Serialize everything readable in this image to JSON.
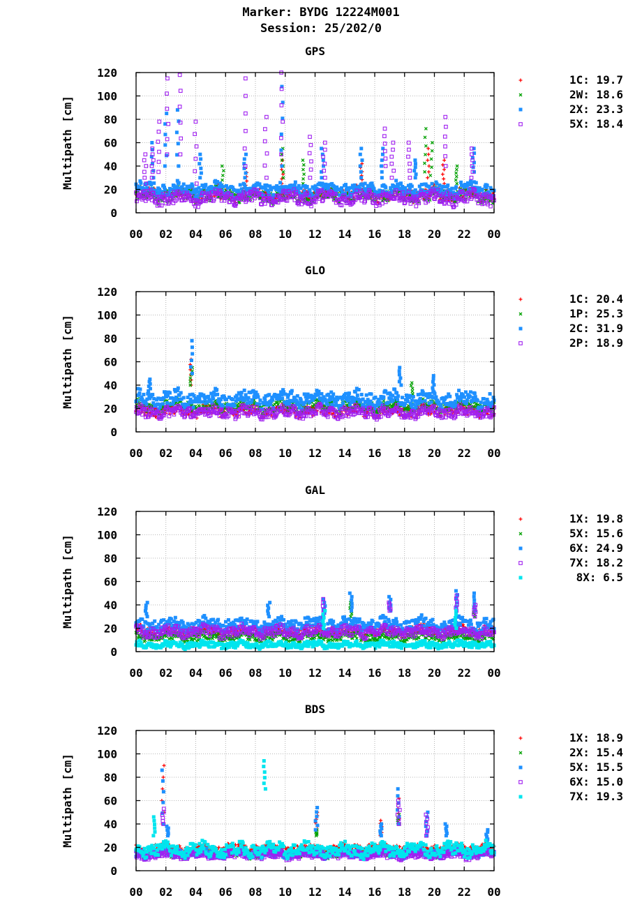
{
  "header": {
    "marker_line": "Marker: BYDG 12224M001",
    "session_line": "Session: 25/202/0"
  },
  "colors": {
    "red": "#ff0000",
    "green": "#00a000",
    "blue": "#1e90ff",
    "purple": "#a020f0",
    "cyan": "#00e5ee"
  },
  "chart_data": [
    {
      "type": "scatter",
      "title": "GPS",
      "ylabel": "Multipath [cm]",
      "xlabel": "",
      "xlim": [
        0,
        24
      ],
      "ylim": [
        0,
        120
      ],
      "xtick_labels": [
        "00",
        "02",
        "04",
        "06",
        "08",
        "10",
        "12",
        "14",
        "16",
        "18",
        "20",
        "22",
        "00"
      ],
      "ytick_labels": [
        "0",
        "20",
        "40",
        "60",
        "80",
        "100",
        "120"
      ],
      "grid": true,
      "legend_position": "right",
      "series": [
        {
          "name": "1C",
          "value": "19.7",
          "color": "#ff0000",
          "marker": "plus",
          "base": 16,
          "spread": 6,
          "spikes": [
            [
              7.4,
              20,
              38
            ],
            [
              9.8,
              25,
              45
            ],
            [
              15.1,
              25,
              42
            ],
            [
              19.6,
              30,
              55
            ],
            [
              20.6,
              25,
              45
            ]
          ]
        },
        {
          "name": "2W",
          "value": "18.6",
          "color": "#00a000",
          "marker": "cross",
          "base": 15,
          "spread": 6,
          "spikes": [
            [
              5.8,
              20,
              40
            ],
            [
              9.8,
              30,
              55
            ],
            [
              11.2,
              25,
              45
            ],
            [
              19.4,
              35,
              72
            ],
            [
              19.8,
              25,
              60
            ],
            [
              21.5,
              25,
              40
            ]
          ]
        },
        {
          "name": "2X",
          "value": "23.3",
          "color": "#1e90ff",
          "marker": "square",
          "base": 20,
          "spread": 6,
          "spikes": [
            [
              1.1,
              30,
              60
            ],
            [
              2.0,
              40,
              85
            ],
            [
              2.8,
              40,
              88
            ],
            [
              4.3,
              30,
              50
            ],
            [
              7.3,
              30,
              50
            ],
            [
              9.8,
              40,
              108
            ],
            [
              12.5,
              30,
              55
            ],
            [
              15.1,
              30,
              55
            ],
            [
              16.5,
              30,
              55
            ],
            [
              18.7,
              30,
              45
            ],
            [
              22.6,
              35,
              55
            ]
          ]
        },
        {
          "name": "5X",
          "value": "18.4",
          "color": "#a020f0",
          "marker": "open-square",
          "base": 13,
          "spread": 6,
          "spikes": [
            [
              0.6,
              25,
              50
            ],
            [
              1.1,
              30,
              55
            ],
            [
              1.5,
              35,
              78
            ],
            [
              2.1,
              50,
              115
            ],
            [
              3.0,
              50,
              118
            ],
            [
              4.0,
              25,
              78
            ],
            [
              7.3,
              40,
              115
            ],
            [
              8.7,
              30,
              82
            ],
            [
              9.8,
              50,
              120
            ],
            [
              11.7,
              30,
              65
            ],
            [
              12.6,
              30,
              60
            ],
            [
              16.7,
              40,
              72
            ],
            [
              17.2,
              30,
              60
            ],
            [
              18.3,
              30,
              60
            ],
            [
              20.7,
              40,
              82
            ],
            [
              22.5,
              30,
              55
            ]
          ]
        }
      ]
    },
    {
      "type": "scatter",
      "title": "GLO",
      "ylabel": "Multipath [cm]",
      "xlabel": "",
      "xlim": [
        0,
        24
      ],
      "ylim": [
        0,
        120
      ],
      "xtick_labels": [
        "00",
        "02",
        "04",
        "06",
        "08",
        "10",
        "12",
        "14",
        "16",
        "18",
        "20",
        "22",
        "00"
      ],
      "ytick_labels": [
        "0",
        "20",
        "40",
        "60",
        "80",
        "100",
        "120"
      ],
      "grid": true,
      "legend_position": "right",
      "series": [
        {
          "name": "1C",
          "value": "20.4",
          "color": "#ff0000",
          "marker": "plus",
          "base": 18,
          "spread": 5,
          "spikes": [
            [
              3.7,
              40,
              62
            ]
          ]
        },
        {
          "name": "1P",
          "value": "25.3",
          "color": "#00a000",
          "marker": "cross",
          "base": 22,
          "spread": 5,
          "spikes": [
            [
              3.7,
              40,
              55
            ],
            [
              18.5,
              30,
              42
            ]
          ]
        },
        {
          "name": "2C",
          "value": "31.9",
          "color": "#1e90ff",
          "marker": "square",
          "base": 28,
          "spread": 7,
          "spikes": [
            [
              0.9,
              35,
              45
            ],
            [
              3.7,
              50,
              78
            ],
            [
              17.7,
              40,
              55
            ],
            [
              19.9,
              35,
              48
            ]
          ]
        },
        {
          "name": "2P",
          "value": "18.9",
          "color": "#a020f0",
          "marker": "open-square",
          "base": 17,
          "spread": 5,
          "spikes": []
        }
      ]
    },
    {
      "type": "scatter",
      "title": "GAL",
      "ylabel": "Multipath [cm]",
      "xlabel": "",
      "xlim": [
        0,
        24
      ],
      "ylim": [
        0,
        120
      ],
      "xtick_labels": [
        "00",
        "02",
        "04",
        "06",
        "08",
        "10",
        "12",
        "14",
        "16",
        "18",
        "20",
        "22",
        "00"
      ],
      "ytick_labels": [
        "0",
        "20",
        "40",
        "60",
        "80",
        "100",
        "120"
      ],
      "grid": true,
      "legend_position": "right",
      "series": [
        {
          "name": "1X",
          "value": "19.8",
          "color": "#ff0000",
          "marker": "plus",
          "base": 18,
          "spread": 5,
          "spikes": []
        },
        {
          "name": "5X",
          "value": "15.6",
          "color": "#00a000",
          "marker": "cross",
          "base": 13,
          "spread": 4,
          "spikes": [
            [
              14.4,
              30,
              42
            ],
            [
              22.7,
              30,
              38
            ]
          ]
        },
        {
          "name": "6X",
          "value": "24.9",
          "color": "#1e90ff",
          "marker": "square",
          "base": 23,
          "spread": 6,
          "spikes": [
            [
              0.7,
              30,
              42
            ],
            [
              8.9,
              30,
              42
            ],
            [
              12.6,
              30,
              45
            ],
            [
              14.4,
              35,
              50
            ],
            [
              17.0,
              35,
              47
            ],
            [
              21.5,
              35,
              52
            ],
            [
              22.7,
              35,
              50
            ]
          ]
        },
        {
          "name": "7X",
          "value": "18.2",
          "color": "#a020f0",
          "marker": "open-square",
          "base": 17,
          "spread": 5,
          "spikes": [
            [
              12.6,
              30,
              45
            ],
            [
              17.0,
              35,
              42
            ],
            [
              21.5,
              35,
              48
            ],
            [
              22.7,
              30,
              40
            ]
          ]
        },
        {
          "name": "8X",
          "value": "6.5",
          "color": "#00e5ee",
          "marker": "square",
          "base": 6,
          "spread": 3,
          "spikes": [
            [
              12.6,
              20,
              35
            ],
            [
              21.4,
              20,
              35
            ]
          ]
        }
      ]
    },
    {
      "type": "scatter",
      "title": "BDS",
      "ylabel": "Multipath [cm]",
      "xlabel": "",
      "xlim": [
        0,
        24
      ],
      "ylim": [
        0,
        120
      ],
      "xtick_labels": [
        "00",
        "02",
        "04",
        "06",
        "08",
        "10",
        "12",
        "14",
        "16",
        "18",
        "20",
        "22",
        "00"
      ],
      "ytick_labels": [
        "0",
        "20",
        "40",
        "60",
        "80",
        "100",
        "120"
      ],
      "grid": true,
      "legend_position": "right",
      "series": [
        {
          "name": "1X",
          "value": "18.9",
          "color": "#ff0000",
          "marker": "plus",
          "base": 19,
          "spread": 4,
          "spikes": [
            [
              1.8,
              40,
              90
            ],
            [
              12.1,
              35,
              50
            ],
            [
              16.4,
              30,
              43
            ],
            [
              17.6,
              40,
              62
            ]
          ]
        },
        {
          "name": "2X",
          "value": "15.4",
          "color": "#00a000",
          "marker": "cross",
          "base": 15,
          "spread": 4,
          "spikes": [
            [
              12.1,
              30,
              35
            ],
            [
              17.6,
              40,
              48
            ]
          ]
        },
        {
          "name": "5X",
          "value": "15.5",
          "color": "#1e90ff",
          "marker": "square",
          "base": 15,
          "spread": 4,
          "spikes": [
            [
              1.8,
              40,
              86
            ],
            [
              2.1,
              30,
              38
            ],
            [
              12.1,
              35,
              54
            ],
            [
              16.4,
              30,
              40
            ],
            [
              17.6,
              40,
              70
            ],
            [
              19.5,
              30,
              50
            ],
            [
              20.8,
              30,
              40
            ],
            [
              23.5,
              25,
              35
            ]
          ]
        },
        {
          "name": "6X",
          "value": "15.0",
          "color": "#a020f0",
          "marker": "open-square",
          "base": 14,
          "spread": 4,
          "spikes": [
            [
              1.8,
              40,
              53
            ],
            [
              17.6,
              40,
              60
            ],
            [
              19.5,
              30,
              48
            ]
          ]
        },
        {
          "name": "7X",
          "value": "19.3",
          "color": "#00e5ee",
          "marker": "square",
          "base": 18,
          "spread": 6,
          "spikes": [
            [
              1.2,
              30,
              46
            ],
            [
              8.6,
              70,
              94
            ]
          ]
        }
      ]
    }
  ]
}
